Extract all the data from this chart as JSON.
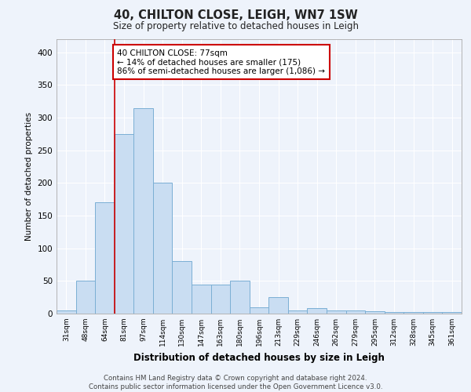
{
  "title1": "40, CHILTON CLOSE, LEIGH, WN7 1SW",
  "title2": "Size of property relative to detached houses in Leigh",
  "xlabel": "Distribution of detached houses by size in Leigh",
  "ylabel": "Number of detached properties",
  "categories": [
    "31sqm",
    "48sqm",
    "64sqm",
    "81sqm",
    "97sqm",
    "114sqm",
    "130sqm",
    "147sqm",
    "163sqm",
    "180sqm",
    "196sqm",
    "213sqm",
    "229sqm",
    "246sqm",
    "262sqm",
    "279sqm",
    "295sqm",
    "312sqm",
    "328sqm",
    "345sqm",
    "361sqm"
  ],
  "values": [
    5,
    50,
    170,
    275,
    315,
    200,
    80,
    45,
    45,
    50,
    10,
    25,
    5,
    8,
    5,
    5,
    4,
    3,
    3,
    3,
    3
  ],
  "bar_color": "#c9ddf2",
  "bar_edge_color": "#7bafd4",
  "background_color": "#eef3fb",
  "grid_color": "#ffffff",
  "red_line_x": 2.5,
  "annotation_text": "40 CHILTON CLOSE: 77sqm\n← 14% of detached houses are smaller (175)\n86% of semi-detached houses are larger (1,086) →",
  "annotation_box_color": "#ffffff",
  "annotation_box_edge": "#cc0000",
  "red_line_color": "#cc0000",
  "ylim": [
    0,
    420
  ],
  "yticks": [
    0,
    50,
    100,
    150,
    200,
    250,
    300,
    350,
    400
  ],
  "footer": "Contains HM Land Registry data © Crown copyright and database right 2024.\nContains public sector information licensed under the Open Government Licence v3.0."
}
